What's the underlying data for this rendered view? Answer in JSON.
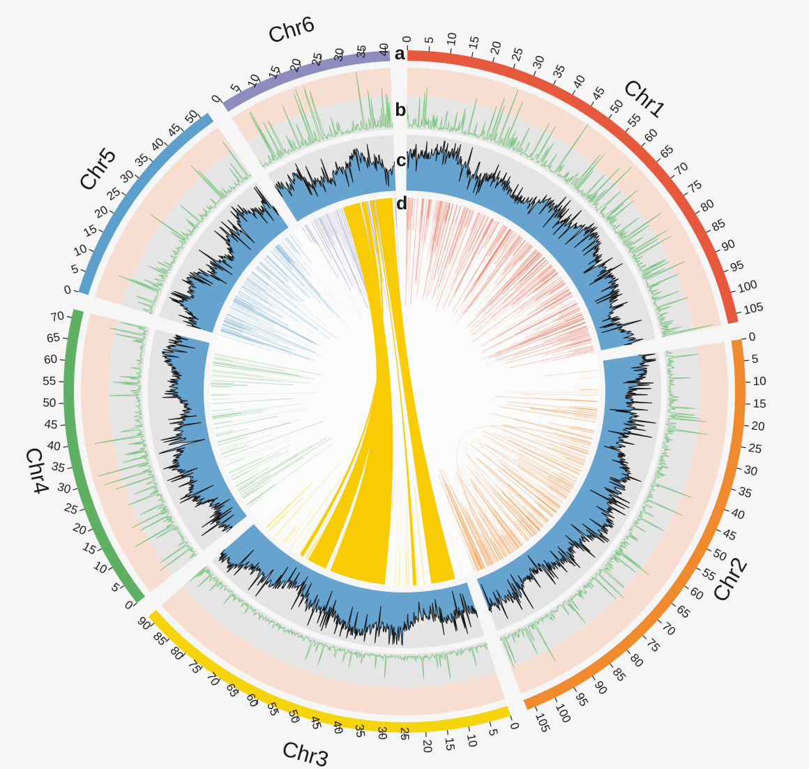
{
  "figure": {
    "background": "#F6F6F6",
    "center_fill": "#FCFCFC",
    "track_labels": [
      {
        "id": "a",
        "label": "a"
      },
      {
        "id": "b",
        "label": "b"
      },
      {
        "id": "c",
        "label": "c"
      },
      {
        "id": "d",
        "label": "d"
      }
    ]
  },
  "chart_data": {
    "type": "circos",
    "unit": "Mb",
    "tick_interval": 5,
    "gap_degrees": 3,
    "start_angle": 0.5,
    "seed": 11,
    "chromosomes": [
      {
        "name": "Chr1",
        "length": 107,
        "max_tick": 105,
        "color": "#E7593C",
        "tiles": {
          "count": 400,
          "bias": 1.0,
          "opacity": 0.4
        },
        "b": {
          "p": 0.09,
          "amp": 1.0
        },
        "c": {
          "mean": 0.62,
          "ph": 1.0
        }
      },
      {
        "name": "Chr2",
        "length": 107,
        "max_tick": 105,
        "color": "#F08A2F",
        "tiles": {
          "count": 310,
          "bias": 0.55,
          "opacity": 0.4
        },
        "b": {
          "p": 0.05,
          "amp": 0.75
        },
        "c": {
          "mean": 0.6,
          "ph": 2.1
        }
      },
      {
        "name": "Chr3",
        "length": 92,
        "max_tick": 90,
        "color": "#F5D40D",
        "tiles": {
          "count": 80,
          "bias": 1.0,
          "opacity": 0.5
        },
        "b": {
          "p": 0.05,
          "amp": 0.4
        },
        "c": {
          "mean": 0.63,
          "ph": 3.3
        }
      },
      {
        "name": "Chr4",
        "length": 72,
        "max_tick": 70,
        "color": "#60B063",
        "tiles": {
          "count": 85,
          "bias": 1.0,
          "opacity": 0.4
        },
        "b": {
          "p": 0.05,
          "amp": 0.9
        },
        "c": {
          "mean": 0.55,
          "ph": 4.0
        }
      },
      {
        "name": "Chr5",
        "length": 52,
        "max_tick": 50,
        "color": "#5C9FCA",
        "tiles": {
          "count": 140,
          "bias": 1.0,
          "opacity": 0.4
        },
        "b": {
          "p": 0.06,
          "amp": 0.8
        },
        "c": {
          "mean": 0.58,
          "ph": 5.2
        }
      },
      {
        "name": "Chr6",
        "length": 41,
        "max_tick": 40,
        "color": "#8E8BBE",
        "tiles": {
          "count": 150,
          "bias": 0.75,
          "opacity": 0.45
        },
        "b": {
          "p": 0.12,
          "amp": 1.0
        },
        "c": {
          "mean": 0.6,
          "ph": 0.3
        }
      }
    ],
    "tracks": {
      "a": {
        "type": "ideogram"
      },
      "b": {
        "type": "line",
        "color": "#76C37B",
        "bg_outer": "#F8DDD1",
        "bg_inner": "#E5E5E5"
      },
      "c": {
        "type": "area-line",
        "fill": "#66A3CE",
        "line": "#151515",
        "bg": "#E4E4E4"
      },
      "d": {
        "type": "tiles-links",
        "link_color": "#F8CB05"
      }
    },
    "links": [
      {
        "source": {
          "chr": "Chr3",
          "start": 33,
          "end": 56
        },
        "target": {
          "chr": "Chr6",
          "start": 19,
          "end": 26
        },
        "color": "#F8CB05",
        "opacity": 1
      },
      {
        "source": {
          "chr": "Chr3",
          "start": 58,
          "end": 66
        },
        "target": {
          "chr": "Chr6",
          "start": 26.6,
          "end": 28.6
        },
        "color": "#F8CB05",
        "opacity": 1
      },
      {
        "source": {
          "chr": "Chr3",
          "start": 4,
          "end": 14
        },
        "target": {
          "chr": "Chr6",
          "start": 32.5,
          "end": 39.5
        },
        "color": "#F8CB05",
        "opacity": 1
      },
      {
        "source": {
          "chr": "Chr3",
          "start": 68.5,
          "end": 70
        },
        "target": {
          "chr": "Chr6",
          "start": 30,
          "end": 31
        },
        "color": "#F8CB05",
        "opacity": 1
      },
      {
        "source": {
          "chr": "Chr3",
          "start": 20,
          "end": 21.5
        },
        "target": {
          "chr": "Chr6",
          "start": 31.3,
          "end": 32
        },
        "color": "#F8CB05",
        "opacity": 1
      },
      {
        "source": {
          "chr": "Chr2",
          "start": 33,
          "end": 34
        },
        "target": {
          "chr": "Chr2",
          "start": 96,
          "end": 97
        },
        "color": "#F0A678",
        "opacity": 0.3
      },
      {
        "source": {
          "chr": "Chr2",
          "start": 55,
          "end": 56
        },
        "target": {
          "chr": "Chr2",
          "start": 78,
          "end": 79
        },
        "color": "#F0A678",
        "opacity": 0.25
      }
    ]
  }
}
